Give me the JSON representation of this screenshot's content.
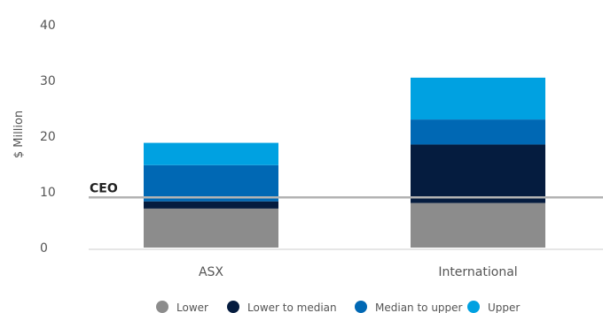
{
  "chart_data": {
    "type": "bar",
    "stacked": true,
    "categories": [
      "ASX",
      "International"
    ],
    "series": [
      {
        "name": "Lower",
        "color": "#8c8c8c",
        "values": [
          7.0,
          8.0
        ]
      },
      {
        "name": "Lower to median",
        "color": "#051c3f",
        "values": [
          1.3,
          10.5
        ]
      },
      {
        "name": "Median to upper",
        "color": "#0068b4",
        "values": [
          6.5,
          4.5
        ]
      },
      {
        "name": "Upper",
        "color": "#00a1e1",
        "values": [
          4.0,
          7.5
        ]
      }
    ],
    "ylabel": "$ Million",
    "ylim": [
      0,
      40
    ],
    "yticks": [
      0,
      10,
      20,
      30,
      40
    ],
    "reference_line": {
      "label": "CEO",
      "value": 9.0,
      "color": "#b3b3b3"
    },
    "grid": false,
    "legend_position": "bottom"
  }
}
